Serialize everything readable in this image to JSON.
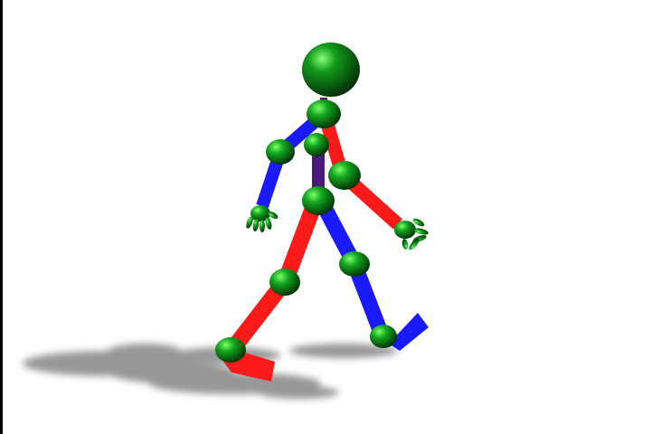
{
  "scene": {
    "subject": "walking-figure",
    "colors": {
      "background": "#ffffff",
      "joint": "#0a7a12",
      "joint_highlight": "#7dff6a",
      "joint_shadow": "#003a04",
      "right_limb": "#ff1a1a",
      "left_limb": "#1a1aff",
      "torso": "#4a1a7a",
      "shadow": "#8a8a8a",
      "edge": "#000000"
    }
  }
}
